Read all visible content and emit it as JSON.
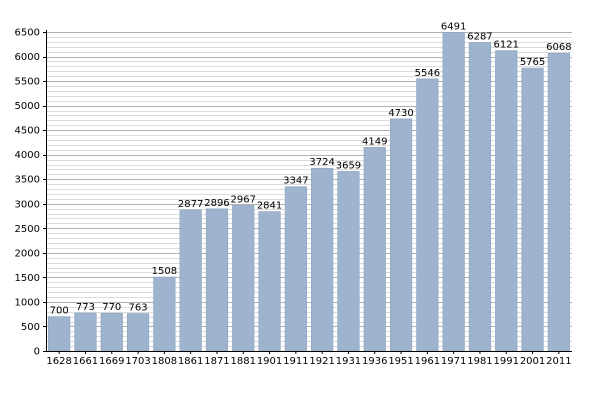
{
  "chart_data": {
    "type": "bar",
    "categories": [
      "1628",
      "1661",
      "1669",
      "1703",
      "1808",
      "1861",
      "1871",
      "1881",
      "1901",
      "1911",
      "1921",
      "1931",
      "1936",
      "1951",
      "1961",
      "1971",
      "1981",
      "1991",
      "2001",
      "2011"
    ],
    "values": [
      700,
      773,
      770,
      763,
      1508,
      2877,
      2896,
      2967,
      2841,
      3347,
      3724,
      3659,
      4149,
      4730,
      5546,
      6491,
      6287,
      6121,
      5765,
      6068
    ],
    "data_labels": [
      "700",
      "773",
      "770",
      "763",
      "1508",
      "2877",
      "2896",
      "2967",
      "2841",
      "3347",
      "3724",
      "3659",
      "4149",
      "4730",
      "5546",
      "6491",
      "6287",
      "6121",
      "5765",
      "6068"
    ],
    "title": "",
    "xlabel": "",
    "ylabel": "",
    "ylim": [
      0,
      6500
    ],
    "yticks": [
      0,
      500,
      1000,
      1500,
      2000,
      2500,
      3000,
      3500,
      4000,
      4500,
      5000,
      5500,
      6000,
      6500
    ],
    "ytick_labels": [
      "0",
      "500",
      "1000",
      "1500",
      "2000",
      "2500",
      "3000",
      "3500",
      "4000",
      "4500",
      "5000",
      "5500",
      "6000",
      "6500"
    ],
    "grid": true,
    "minor_grid_step": 100,
    "legend": "none",
    "colors": {
      "bar": "#9eb4ce",
      "bar_edge": "#8ba2bf",
      "major_grid": "#b0b0b0",
      "minor_grid": "#dcdcdc",
      "axis": "#000000"
    }
  }
}
